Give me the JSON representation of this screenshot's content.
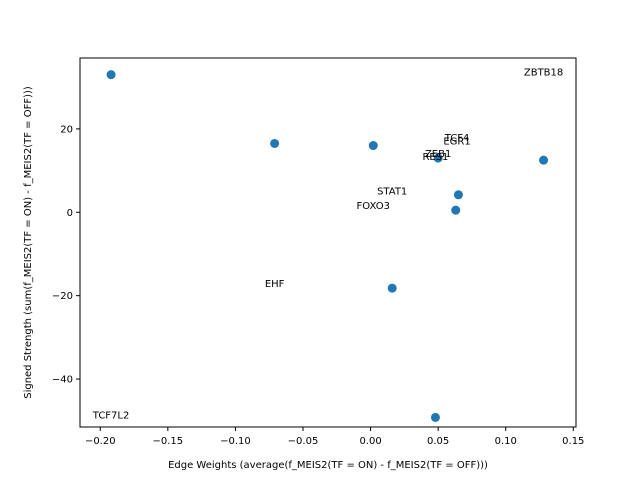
{
  "chart_data": {
    "type": "scatter",
    "title": "",
    "xlabel": "Edge Weights (average(f_MEIS2(TF = ON) - f_MEIS2(TF = OFF)))",
    "ylabel": "Signed Strength (sum(f_MEIS2(TF = ON) - f_MEIS2(TF = OFF)))",
    "xlim": [
      -0.215,
      0.152
    ],
    "ylim": [
      -51.5,
      37
    ],
    "xticks": [
      -0.2,
      -0.15,
      -0.1,
      -0.05,
      0.0,
      0.05,
      0.1,
      0.15
    ],
    "xtick_labels": [
      "−0.20",
      "−0.15",
      "−0.10",
      "−0.05",
      "0.00",
      "0.05",
      "0.10",
      "0.15"
    ],
    "yticks": [
      -40,
      -20,
      0,
      20
    ],
    "ytick_labels": [
      "−40",
      "−20",
      "0",
      "20"
    ],
    "grid": false,
    "point_color": "#1f77b4",
    "points": [
      {
        "x": -0.192,
        "y": 33.0
      },
      {
        "x": -0.071,
        "y": 16.5
      },
      {
        "x": 0.002,
        "y": 16.0
      },
      {
        "x": 0.05,
        "y": 13.0
      },
      {
        "x": 0.065,
        "y": 4.2
      },
      {
        "x": 0.063,
        "y": 0.5
      },
      {
        "x": 0.016,
        "y": -18.2
      },
      {
        "x": 0.048,
        "y": -49.2
      },
      {
        "x": 0.128,
        "y": 12.5
      }
    ],
    "labels": [
      {
        "text": "ZBTB18",
        "x": 0.128,
        "y": 33.5
      },
      {
        "text": "TCF4",
        "x": 0.064,
        "y": 17.8
      },
      {
        "text": "EGR1",
        "x": 0.064,
        "y": 17.0
      },
      {
        "text": "ZEB1",
        "x": 0.05,
        "y": 14.0
      },
      {
        "text": "RES1",
        "x": 0.048,
        "y": 13.3
      },
      {
        "text": "STAT1",
        "x": 0.016,
        "y": 5.0
      },
      {
        "text": "FOXO3",
        "x": 0.002,
        "y": 1.5
      },
      {
        "text": "EHF",
        "x": -0.071,
        "y": -17.2
      },
      {
        "text": "TCF7L2",
        "x": -0.192,
        "y": -48.8
      }
    ]
  }
}
